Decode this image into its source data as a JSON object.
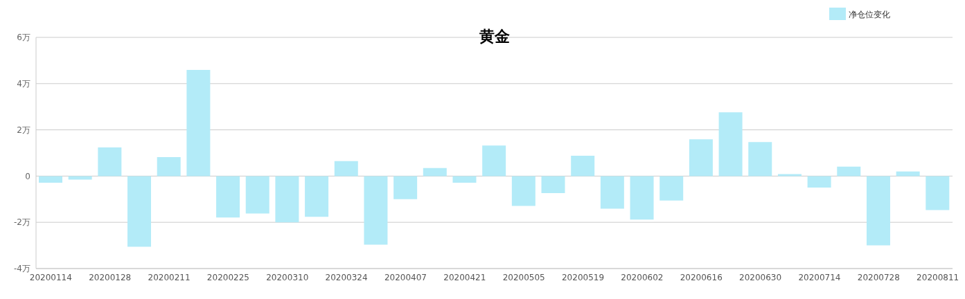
{
  "chart_data": {
    "type": "bar",
    "title": "黄金",
    "categories": [
      "20200114",
      null,
      "20200128",
      null,
      "20200211",
      null,
      "20200225",
      null,
      "20200310",
      null,
      "20200324",
      null,
      "20200407",
      null,
      "20200421",
      null,
      "20200505",
      null,
      "20200519",
      null,
      "20200602",
      null,
      "20200616",
      null,
      "20200630",
      null,
      "20200714",
      null,
      "20200728",
      null,
      "20200811"
    ],
    "series": [
      {
        "name": "净仓位变化",
        "color": "#b3ebf8",
        "values": [
          -0.29,
          -0.15,
          1.24,
          -3.06,
          0.82,
          4.59,
          -1.79,
          -1.62,
          -2.0,
          -1.76,
          0.65,
          -2.97,
          -1.0,
          0.35,
          -0.29,
          1.32,
          -1.29,
          -0.74,
          0.88,
          -1.41,
          -1.88,
          -1.06,
          1.59,
          2.76,
          1.47,
          0.09,
          -0.5,
          0.41,
          -3.0,
          0.2,
          -1.47
        ]
      }
    ],
    "ylim": [
      -4,
      6
    ],
    "yticks": [
      {
        "value": -4,
        "label": "-4万"
      },
      {
        "value": -2,
        "label": "-2万"
      },
      0,
      {
        "value": 2,
        "label": "2万"
      },
      {
        "value": 4,
        "label": "4万"
      },
      {
        "value": 6,
        "label": "6万"
      }
    ],
    "grid": "y",
    "legend": "top right"
  }
}
